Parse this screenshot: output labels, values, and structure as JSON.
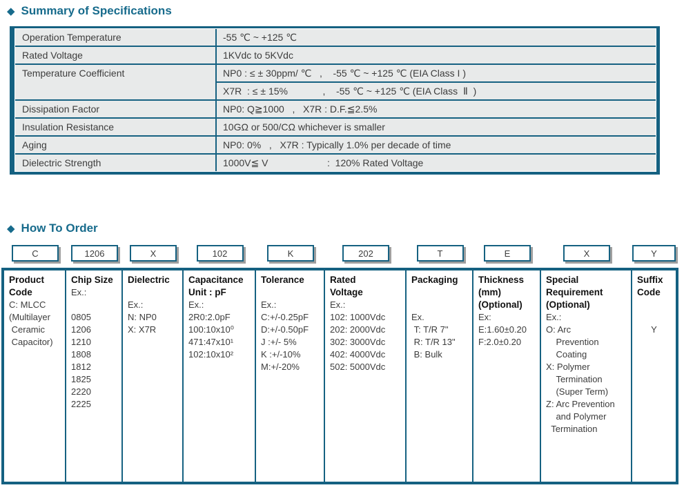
{
  "icons": {
    "diamond": "◆"
  },
  "colors": {
    "accent": "#156181",
    "cell_bg": "#E8EAEA",
    "box_shadow": "#9F9F9F"
  },
  "summary": {
    "title": "Summary of Specifications",
    "rows": [
      {
        "label": "Operation Temperature",
        "value": "-55 ℃ ~ +125 ℃"
      },
      {
        "label": "Rated Voltage",
        "value": "1KVdc to 5KVdc"
      },
      {
        "label": "Temperature Coefficient",
        "values": [
          "NP0 : ≤ ± 30ppm/ ℃   ,    -55 ℃ ~ +125 ℃ (EIA Class I )",
          "X7R  : ≤ ± 15%             ,    -55 ℃ ~ +125 ℃ (EIA Class  Ⅱ  )"
        ]
      },
      {
        "label": "Dissipation Factor",
        "value": "NP0: Q≧1000   ,   X7R : D.F.≦2.5%"
      },
      {
        "label": "Insulation Resistance",
        "value": "10GΩ or 500/CΩ whichever is smaller"
      },
      {
        "label": "Aging",
        "value": "NP0: 0%   ,   X7R : Typically 1.0% per decade of time"
      },
      {
        "label": "Dielectric Strength",
        "value": "1000V≦ V                      :  120% Rated Voltage"
      }
    ]
  },
  "order": {
    "title": "How To Order",
    "codes": [
      "C",
      "1206",
      "X",
      "102",
      "K",
      "202",
      "T",
      "E",
      "X",
      "Y"
    ],
    "columns": [
      {
        "header": "Product\nCode",
        "lines": [
          "C: MLCC",
          "(Multilayer",
          " Ceramic",
          " Capacitor)"
        ]
      },
      {
        "header": "Chip Size",
        "lines": [
          "Ex.:",
          "",
          "0805",
          "1206",
          "1210",
          "1808",
          "1812",
          "1825",
          "2220",
          "2225"
        ]
      },
      {
        "header": "Dielectric",
        "lines": [
          "",
          "Ex.:",
          "N: NP0",
          "X: X7R"
        ]
      },
      {
        "header": "Capacitance\nUnit : pF",
        "lines": [
          "Ex.:",
          "2R0:2.0pF",
          "100:10x10⁰",
          "471:47x10¹",
          "102:10x10²"
        ]
      },
      {
        "header": "Tolerance",
        "lines": [
          "",
          "Ex.:",
          "C:+/-0.25pF",
          "D:+/-0.50pF",
          "J :+/- 5%",
          "K :+/-10%",
          "M:+/-20%"
        ]
      },
      {
        "header": "Rated\nVoltage",
        "lines": [
          "Ex.:",
          "102: 1000Vdc",
          "202: 2000Vdc",
          "302: 3000Vdc",
          "402: 4000Vdc",
          "502: 5000Vdc"
        ]
      },
      {
        "header": "Packaging",
        "lines": [
          "",
          "",
          "Ex.",
          " T: T/R 7\"",
          " R: T/R 13\"",
          " B: Bulk"
        ]
      },
      {
        "header": "Thickness\n(mm)\n(Optional)",
        "lines": [
          "Ex:",
          "E:1.60±0.20",
          "F:2.0±0.20"
        ]
      },
      {
        "header": "Special\nRequirement\n(Optional)",
        "lines": [
          "Ex.:",
          "O: Arc",
          "    Prevention",
          "    Coating",
          "X: Polymer",
          "    Termination",
          "    (Super Term)",
          "Z: Arc Prevention",
          "    and Polymer",
          "  Termination"
        ]
      },
      {
        "header": "Suffix\nCode",
        "lines": [
          "",
          "",
          "Y"
        ]
      }
    ]
  }
}
